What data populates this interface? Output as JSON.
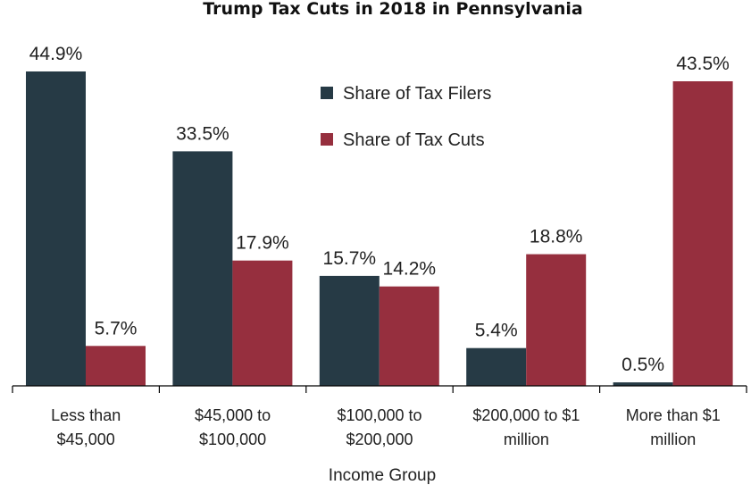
{
  "chart_data": {
    "type": "bar",
    "title": "Trump Tax Cuts in 2018 in Pennsylvania",
    "xlabel": "Income Group",
    "ylabel": "",
    "ylim": [
      0,
      50
    ],
    "grid": false,
    "legend_position": "top-center",
    "categories": [
      [
        "Less than",
        "$45,000"
      ],
      [
        "$45,000 to",
        "$100,000"
      ],
      [
        "$100,000 to",
        "$200,000"
      ],
      [
        "$200,000 to $1",
        "million"
      ],
      [
        "More than $1",
        "million"
      ]
    ],
    "series": [
      {
        "name": "Share of Tax Filers",
        "color": "#263a45",
        "values": [
          44.9,
          33.5,
          15.7,
          5.4,
          0.5
        ],
        "labels": [
          "44.9%",
          "33.5%",
          "15.7%",
          "5.4%",
          "0.5%"
        ]
      },
      {
        "name": "Share of Tax Cuts",
        "color": "#962f3e",
        "values": [
          5.7,
          17.9,
          14.2,
          18.8,
          43.5
        ],
        "labels": [
          "5.7%",
          "17.9%",
          "14.2%",
          "18.8%",
          "43.5%"
        ]
      }
    ]
  }
}
